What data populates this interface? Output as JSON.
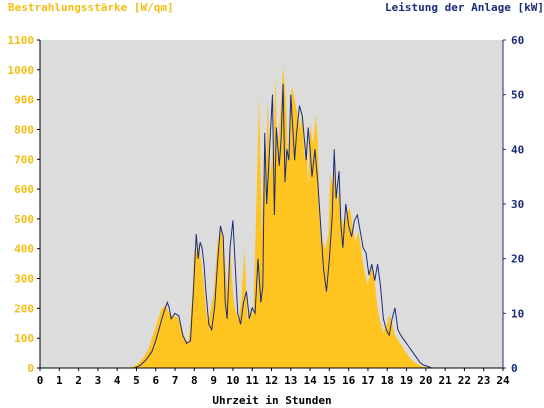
{
  "colors": {
    "irradiance": "#ffc41f",
    "irradiance_axis": "#f5bd12",
    "power": "#1b2b7a",
    "plot_bg": "#dcdcdc",
    "axis": "#000000"
  },
  "chart_data": {
    "type": "area",
    "left_axis_title": "Bestrahlungsstärke [W/qm]",
    "right_axis_title": "Leistung der Anlage [kW]",
    "xlabel": "Uhrzeit in Stunden",
    "xlim": [
      0,
      24
    ],
    "ylim_left": [
      0,
      1100
    ],
    "ylim_right": [
      0,
      60
    ],
    "x_ticks": [
      "0",
      "1",
      "2",
      "3",
      "4",
      "5",
      "6",
      "7",
      "8",
      "9",
      "10",
      "11",
      "12",
      "13",
      "14",
      "15",
      "16",
      "17",
      "18",
      "19",
      "20",
      "21",
      "22",
      "23",
      "24"
    ],
    "y_ticks_left": [
      "0",
      "100",
      "200",
      "300",
      "400",
      "500",
      "600",
      "700",
      "800",
      "900",
      "1000",
      "1100"
    ],
    "y_ticks_right": [
      "0",
      "10",
      "20",
      "30",
      "40",
      "50",
      "60"
    ],
    "grid": false,
    "series": [
      {
        "name": "Bestrahlungsstärke [W/qm]",
        "axis": "left",
        "x": [
          0,
          4.6,
          5.0,
          5.3,
          5.6,
          5.9,
          6.1,
          6.3,
          6.5,
          6.7,
          6.9,
          7.1,
          7.3,
          7.5,
          7.7,
          7.9,
          8.0,
          8.1,
          8.2,
          8.35,
          8.5,
          8.6,
          8.7,
          8.8,
          9.0,
          9.2,
          9.4,
          9.6,
          9.75,
          9.85,
          10.0,
          10.1,
          10.2,
          10.3,
          10.45,
          10.6,
          10.75,
          10.9,
          11.05,
          11.2,
          11.35,
          11.5,
          11.6,
          11.7,
          11.8,
          11.95,
          12.1,
          12.2,
          12.3,
          12.45,
          12.6,
          12.75,
          12.85,
          12.95,
          13.05,
          13.2,
          13.35,
          13.5,
          13.6,
          13.7,
          13.8,
          13.9,
          14.0,
          14.15,
          14.3,
          14.4,
          14.5,
          14.65,
          14.8,
          14.95,
          15.05,
          15.2,
          15.3,
          15.4,
          15.5,
          15.6,
          15.75,
          15.9,
          16.05,
          16.2,
          16.35,
          16.5,
          16.6,
          16.75,
          16.9,
          17.0,
          17.1,
          17.2,
          17.35,
          17.5,
          17.65,
          17.8,
          17.95,
          18.1,
          18.25,
          18.4,
          18.6,
          18.8,
          19.0,
          19.2,
          19.4,
          19.6,
          19.8,
          20.0,
          20.2,
          20.4,
          24
        ],
        "y": [
          0,
          0,
          10,
          30,
          60,
          120,
          160,
          200,
          210,
          185,
          170,
          175,
          140,
          100,
          80,
          250,
          400,
          380,
          420,
          360,
          280,
          200,
          150,
          180,
          250,
          420,
          480,
          350,
          230,
          420,
          250,
          200,
          180,
          160,
          240,
          400,
          160,
          200,
          180,
          500,
          920,
          450,
          700,
          600,
          900,
          650,
          750,
          980,
          700,
          850,
          1010,
          900,
          700,
          800,
          950,
          900,
          850,
          800,
          870,
          700,
          770,
          600,
          820,
          750,
          850,
          760,
          500,
          420,
          400,
          450,
          650,
          600,
          700,
          550,
          600,
          500,
          480,
          520,
          540,
          480,
          420,
          460,
          420,
          350,
          300,
          280,
          320,
          340,
          290,
          200,
          150,
          120,
          140,
          180,
          150,
          110,
          90,
          70,
          50,
          30,
          20,
          12,
          6,
          3,
          0,
          0,
          0
        ]
      },
      {
        "name": "Leistung der Anlage [kW]",
        "axis": "right",
        "x": [
          0,
          4.9,
          5.2,
          5.5,
          5.8,
          6.0,
          6.2,
          6.4,
          6.6,
          6.7,
          6.8,
          7.0,
          7.2,
          7.4,
          7.6,
          7.8,
          7.95,
          8.1,
          8.2,
          8.3,
          8.4,
          8.5,
          8.6,
          8.75,
          8.9,
          9.05,
          9.2,
          9.35,
          9.5,
          9.6,
          9.7,
          9.85,
          10.0,
          10.1,
          10.25,
          10.4,
          10.55,
          10.7,
          10.85,
          11.0,
          11.15,
          11.3,
          11.45,
          11.55,
          11.65,
          11.75,
          11.9,
          12.05,
          12.15,
          12.25,
          12.4,
          12.5,
          12.6,
          12.7,
          12.8,
          12.9,
          13.0,
          13.1,
          13.2,
          13.3,
          13.45,
          13.6,
          13.7,
          13.8,
          13.9,
          14.0,
          14.1,
          14.25,
          14.4,
          14.55,
          14.7,
          14.85,
          15.0,
          15.15,
          15.25,
          15.35,
          15.5,
          15.6,
          15.7,
          15.85,
          16.0,
          16.15,
          16.3,
          16.45,
          16.6,
          16.75,
          16.9,
          17.05,
          17.2,
          17.35,
          17.5,
          17.65,
          17.8,
          17.95,
          18.1,
          18.25,
          18.4,
          18.55,
          18.7,
          18.9,
          19.1,
          19.3,
          19.5,
          19.7,
          19.9,
          20.1,
          20.3,
          20.5,
          24
        ],
        "y": [
          0,
          0,
          0.5,
          1.5,
          3,
          5,
          7.5,
          10,
          12,
          11,
          9,
          10,
          9.5,
          6,
          4.5,
          5,
          14,
          24.5,
          20,
          23,
          22,
          19,
          14,
          8,
          7,
          11,
          19,
          26,
          24,
          12,
          9,
          22,
          27,
          20,
          10,
          8,
          12,
          14,
          9,
          11,
          10,
          20,
          12,
          15,
          43,
          30,
          40,
          50,
          28,
          44,
          37,
          42,
          52,
          34,
          40,
          38,
          50,
          44,
          38,
          43,
          48,
          46,
          42,
          38,
          44,
          40,
          35,
          40,
          34,
          26,
          18,
          14,
          20,
          28,
          40,
          31,
          36,
          26,
          22,
          30,
          26,
          24,
          27,
          28,
          25,
          22,
          21,
          17,
          19,
          16,
          19,
          15,
          9,
          7,
          6,
          9,
          11,
          7,
          6,
          5,
          4,
          3,
          2,
          1,
          0.5,
          0.3,
          0,
          0,
          0
        ]
      }
    ]
  }
}
